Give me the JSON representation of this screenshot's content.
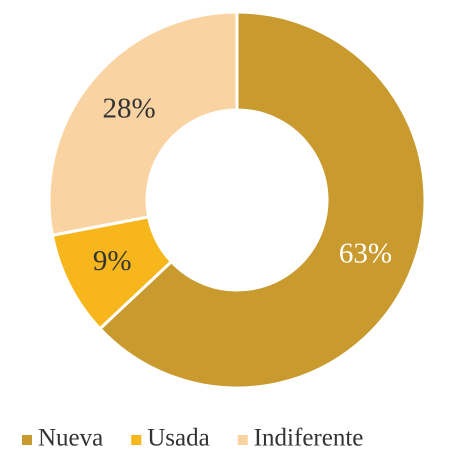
{
  "chart_data": {
    "type": "pie",
    "categories": [
      "Nueva",
      "Usada",
      "Indiferente"
    ],
    "values": [
      63,
      9,
      28
    ],
    "value_labels": [
      "63%",
      "9%",
      "28%"
    ],
    "colors": [
      "#c99a2e",
      "#f6b61c",
      "#f9d3a2"
    ],
    "legend": "bottom"
  }
}
